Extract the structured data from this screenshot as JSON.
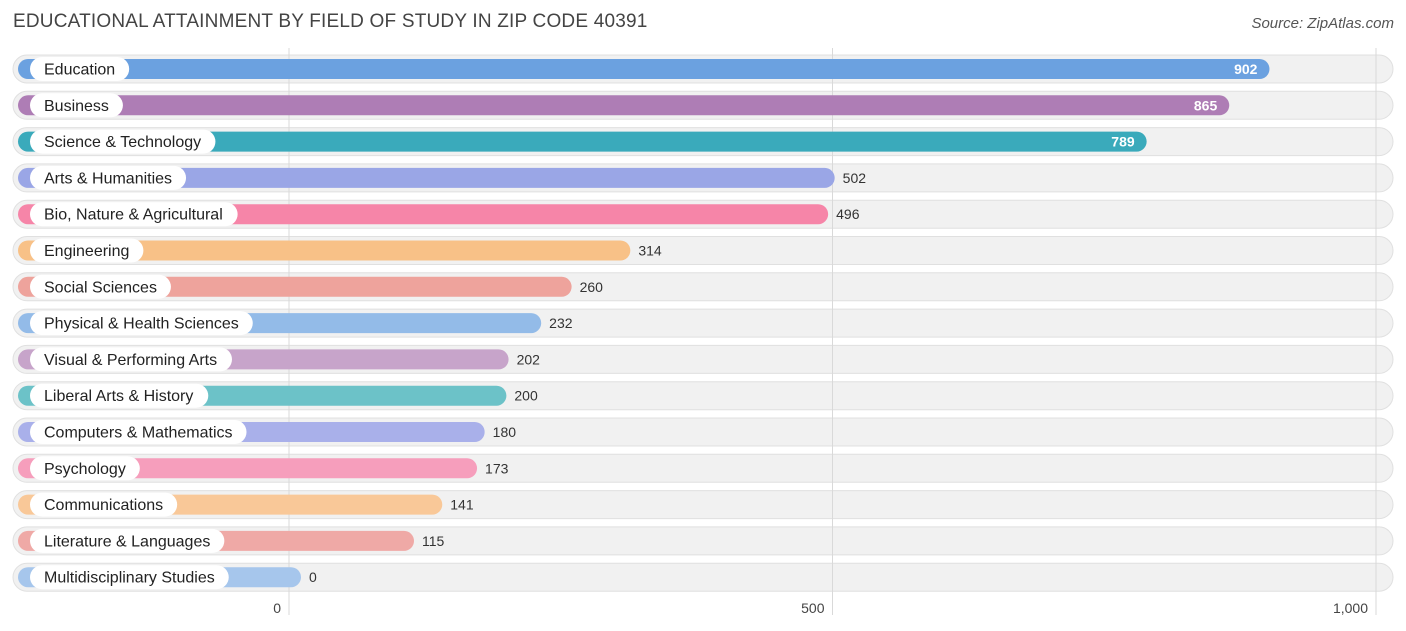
{
  "header": {
    "title": "EDUCATIONAL ATTAINMENT BY FIELD OF STUDY IN ZIP CODE 40391",
    "source": "Source: ZipAtlas.com"
  },
  "chart_data": {
    "type": "bar",
    "orientation": "horizontal",
    "title": "EDUCATIONAL ATTAINMENT BY FIELD OF STUDY IN ZIP CODE 40391",
    "categories": [
      "Education",
      "Business",
      "Science & Technology",
      "Arts & Humanities",
      "Bio, Nature & Agricultural",
      "Engineering",
      "Social Sciences",
      "Physical & Health Sciences",
      "Visual & Performing Arts",
      "Liberal Arts & History",
      "Computers & Mathematics",
      "Psychology",
      "Communications",
      "Literature & Languages",
      "Multidisciplinary Studies"
    ],
    "values": [
      902,
      865,
      789,
      502,
      496,
      314,
      260,
      232,
      202,
      200,
      180,
      173,
      141,
      115,
      0
    ],
    "value_labels": [
      "902",
      "865",
      "789",
      "502",
      "496",
      "314",
      "260",
      "232",
      "202",
      "200",
      "180",
      "173",
      "141",
      "115",
      "0"
    ],
    "colors": [
      "#6ba1e0",
      "#ae7db5",
      "#3aaabb",
      "#9aa6e6",
      "#f685a8",
      "#f8c187",
      "#eea39c",
      "#93bbe8",
      "#c7a4ca",
      "#6cc2c8",
      "#a9b0ea",
      "#f69ebc",
      "#f9c898",
      "#efa9a6",
      "#a6c6ec"
    ],
    "xlim": [
      0,
      1000
    ],
    "ticks": [
      0,
      500,
      1000
    ],
    "tick_labels": [
      "0",
      "500",
      "1,000"
    ],
    "xlabel": "",
    "ylabel": "",
    "grid": true
  }
}
